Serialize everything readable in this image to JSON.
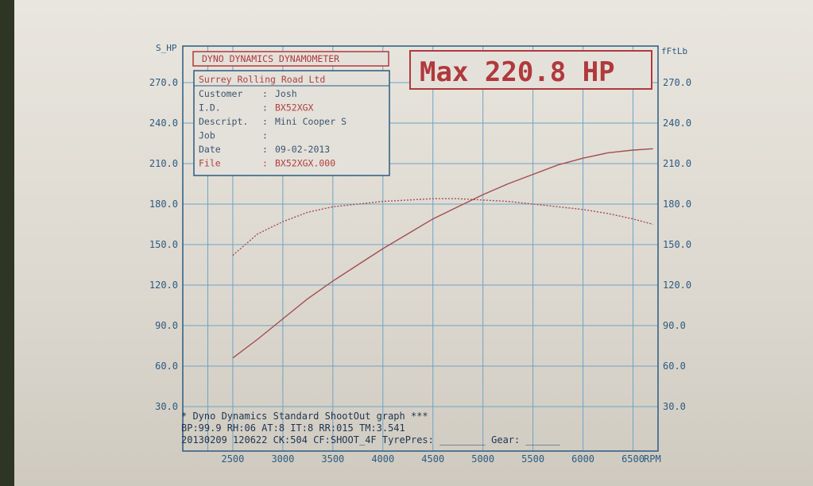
{
  "header": {
    "title": "DYNO DYNAMICS DYNAMOMETER",
    "max_label": "Max 220.8 HP"
  },
  "info": {
    "company": "Surrey Rolling Road Ltd",
    "rows": [
      {
        "label": "Customer",
        "value": "Josh"
      },
      {
        "label": "I.D.",
        "value": "BX52XGX"
      },
      {
        "label": "Descript.",
        "value": "Mini Cooper S"
      },
      {
        "label": "Job",
        "value": ""
      },
      {
        "label": "Date",
        "value": "09-02-2013"
      },
      {
        "label": "File",
        "value": "BX52XGX.000"
      }
    ]
  },
  "footer": {
    "line1": "* Dyno Dynamics Standard ShootOut graph ***",
    "line2": "BP:99.9  RH:06 AT:8  IT:8   RR:015 TM:3.541",
    "line3": "20130209 120622 CK:504 CF:SHOOT_4F TyrePres: ________ Gear: ______"
  },
  "colors": {
    "grid": "#6ea3c4",
    "frame": "#2c5a80",
    "power": "#a34e50",
    "torque": "#a34e50",
    "title_red": "#b0393d"
  },
  "chart_data": {
    "type": "line",
    "x_label": "RPM",
    "y_label_left": "S_HP",
    "y_label_right": "fFtLb",
    "x": [
      2500,
      2750,
      3000,
      3250,
      3500,
      3750,
      4000,
      4250,
      4500,
      4750,
      5000,
      5250,
      5500,
      5750,
      6000,
      6250,
      6500,
      6700
    ],
    "xlim": [
      2000,
      6750
    ],
    "ylim": [
      30,
      270
    ],
    "x_ticks": [
      "2500",
      "3000",
      "3500",
      "4000",
      "4500",
      "5000",
      "5500",
      "6000",
      "6500"
    ],
    "x_tick_values": [
      2500,
      3000,
      3500,
      4000,
      4500,
      5000,
      5500,
      6000,
      6500
    ],
    "y_ticks": [
      "270.0",
      "240.0",
      "210.0",
      "180.0",
      "150.0",
      "120.0",
      "90.0",
      "60.0",
      "30.0"
    ],
    "y_tick_values": [
      270,
      240,
      210,
      180,
      150,
      120,
      90,
      60,
      30
    ],
    "grid": true,
    "series": [
      {
        "style": "solid",
        "values": [
          66,
          80,
          95,
          110,
          123,
          135,
          147,
          158,
          169,
          178,
          187,
          195,
          202,
          209,
          214,
          218,
          220,
          221
        ]
      },
      {
        "style": "dotted",
        "values": [
          142,
          158,
          167,
          174,
          178,
          180,
          182,
          183,
          184,
          184,
          183,
          182,
          180,
          178,
          176,
          173,
          169,
          165
        ]
      }
    ]
  }
}
